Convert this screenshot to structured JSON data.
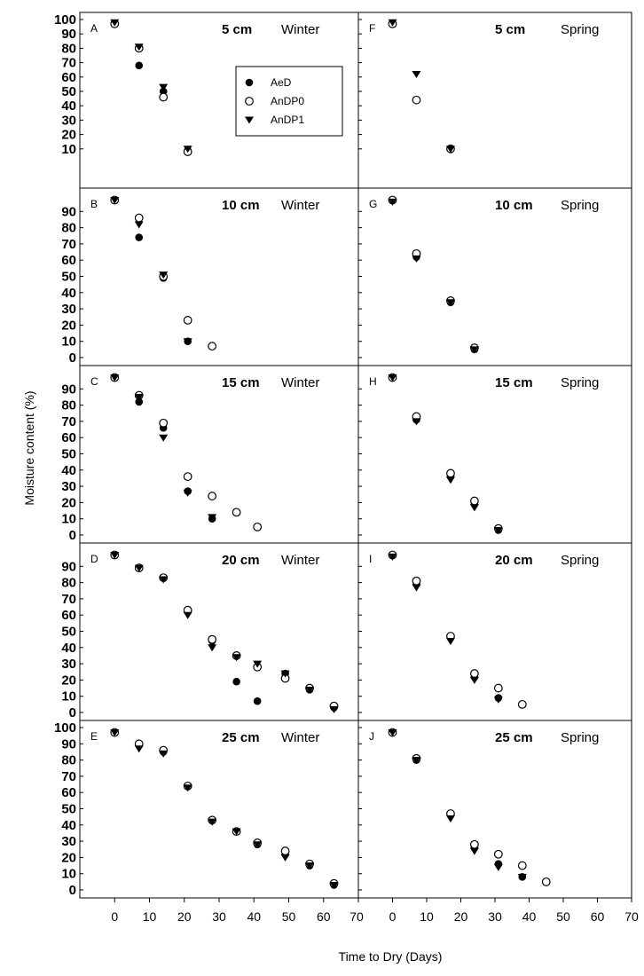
{
  "figure": {
    "ylabel": "Moisture content (%)",
    "xlabel": "Time to Dry (Days)",
    "colors": {
      "marker": "#000000",
      "frame": "#000000"
    }
  },
  "legend": {
    "entries": [
      {
        "name": "AeD",
        "marker": "filled-circle"
      },
      {
        "name": "AnDP0",
        "marker": "open-circle"
      },
      {
        "name": "AnDP1",
        "marker": "filled-triangle-down"
      }
    ]
  },
  "chart_data": [
    {
      "type": "scatter",
      "panel": "A",
      "depth": "5 cm",
      "season": "Winter",
      "xlim": [
        -10,
        70
      ],
      "ylim": [
        0,
        100
      ],
      "xticks": [
        0,
        10,
        20,
        30,
        40,
        50,
        60,
        70
      ],
      "yticks": [
        10,
        20,
        30,
        40,
        50,
        60,
        70,
        80,
        90,
        100
      ],
      "series": [
        {
          "name": "AeD",
          "x": [
            0,
            7,
            14,
            21
          ],
          "y": [
            97,
            68,
            50,
            9
          ]
        },
        {
          "name": "AnDP0",
          "x": [
            0,
            7,
            14,
            21
          ],
          "y": [
            97,
            80,
            46,
            8
          ]
        },
        {
          "name": "AnDP1",
          "x": [
            0,
            7,
            14,
            21
          ],
          "y": [
            98,
            81,
            53,
            10
          ]
        }
      ]
    },
    {
      "type": "scatter",
      "panel": "B",
      "depth": "10 cm",
      "season": "Winter",
      "xlim": [
        -10,
        70
      ],
      "ylim": [
        0,
        100
      ],
      "xticks": [
        0,
        10,
        20,
        30,
        40,
        50,
        60,
        70
      ],
      "yticks": [
        0,
        10,
        20,
        30,
        40,
        50,
        60,
        70,
        80,
        90
      ],
      "series": [
        {
          "name": "AeD",
          "x": [
            0,
            7,
            14,
            21
          ],
          "y": [
            97,
            74,
            49,
            10
          ]
        },
        {
          "name": "AnDP0",
          "x": [
            0,
            7,
            14,
            21,
            28
          ],
          "y": [
            97,
            86,
            50,
            23,
            7
          ]
        },
        {
          "name": "AnDP1",
          "x": [
            0,
            7,
            14,
            21
          ],
          "y": [
            97,
            82,
            51,
            10
          ]
        }
      ]
    },
    {
      "type": "scatter",
      "panel": "C",
      "depth": "15 cm",
      "season": "Winter",
      "xlim": [
        -10,
        70
      ],
      "ylim": [
        0,
        100
      ],
      "xticks": [
        0,
        10,
        20,
        30,
        40,
        50,
        60,
        70
      ],
      "yticks": [
        0,
        10,
        20,
        30,
        40,
        50,
        60,
        70,
        80,
        90
      ],
      "series": [
        {
          "name": "AeD",
          "x": [
            0,
            7,
            14,
            21,
            28
          ],
          "y": [
            97,
            82,
            66,
            27,
            10
          ]
        },
        {
          "name": "AnDP0",
          "x": [
            0,
            7,
            14,
            21,
            28,
            35,
            41
          ],
          "y": [
            97,
            86,
            69,
            36,
            24,
            14,
            5
          ]
        },
        {
          "name": "AnDP1",
          "x": [
            0,
            7,
            14,
            21,
            28
          ],
          "y": [
            97,
            85,
            60,
            26,
            11
          ]
        }
      ]
    },
    {
      "type": "scatter",
      "panel": "D",
      "depth": "20 cm",
      "season": "Winter",
      "xlim": [
        -10,
        70
      ],
      "ylim": [
        0,
        100
      ],
      "xticks": [
        0,
        10,
        20,
        30,
        40,
        50,
        60,
        70
      ],
      "yticks": [
        0,
        10,
        20,
        30,
        40,
        50,
        60,
        70,
        80,
        90
      ],
      "series": [
        {
          "name": "AeD",
          "x": [
            0,
            7,
            14,
            21,
            28,
            35,
            41,
            49,
            56,
            63
          ],
          "y": [
            97,
            89,
            83,
            62,
            44,
            19,
            7,
            24,
            14,
            3
          ]
        },
        {
          "name": "AnDP0",
          "x": [
            0,
            7,
            14,
            21,
            28,
            35,
            41,
            49,
            56,
            63
          ],
          "y": [
            97,
            89,
            83,
            63,
            45,
            35,
            28,
            21,
            15,
            4
          ]
        },
        {
          "name": "AnDP1",
          "x": [
            0,
            7,
            14,
            21,
            28,
            35,
            41,
            49,
            56,
            63
          ],
          "y": [
            97,
            89,
            82,
            60,
            40,
            34,
            30,
            24,
            14,
            2
          ]
        }
      ]
    },
    {
      "type": "scatter",
      "panel": "E",
      "depth": "25 cm",
      "season": "Winter",
      "xlim": [
        -10,
        70
      ],
      "ylim": [
        0,
        100
      ],
      "xticks": [
        0,
        10,
        20,
        30,
        40,
        50,
        60,
        70
      ],
      "yticks": [
        0,
        10,
        20,
        30,
        40,
        50,
        60,
        70,
        80,
        90,
        100
      ],
      "series": [
        {
          "name": "AeD",
          "x": [
            0,
            7,
            14,
            21,
            28,
            35,
            41,
            49,
            56,
            63
          ],
          "y": [
            97,
            89,
            85,
            64,
            43,
            36,
            28,
            22,
            15,
            3
          ]
        },
        {
          "name": "AnDP0",
          "x": [
            0,
            7,
            14,
            21,
            28,
            35,
            41,
            49,
            56,
            63
          ],
          "y": [
            97,
            90,
            86,
            64,
            43,
            36,
            29,
            24,
            16,
            4
          ]
        },
        {
          "name": "AnDP1",
          "x": [
            0,
            7,
            14,
            21,
            28,
            35,
            41,
            49,
            56,
            63
          ],
          "y": [
            97,
            87,
            84,
            63,
            42,
            36,
            28,
            20,
            15,
            3
          ]
        }
      ]
    },
    {
      "type": "scatter",
      "panel": "F",
      "depth": "5 cm",
      "season": "Spring",
      "xlim": [
        -10,
        70
      ],
      "ylim": [
        0,
        100
      ],
      "xticks": [
        0,
        10,
        20,
        30,
        40,
        50,
        60,
        70
      ],
      "yticks": [
        10,
        20,
        30,
        40,
        50,
        60,
        70,
        80,
        90,
        100
      ],
      "series": [
        {
          "name": "AeD",
          "x": [
            0,
            17
          ],
          "y": [
            97,
            10
          ]
        },
        {
          "name": "AnDP0",
          "x": [
            0,
            7,
            17
          ],
          "y": [
            97,
            44,
            10
          ]
        },
        {
          "name": "AnDP1",
          "x": [
            0,
            7,
            17
          ],
          "y": [
            98,
            62,
            10
          ]
        }
      ]
    },
    {
      "type": "scatter",
      "panel": "G",
      "depth": "10 cm",
      "season": "Spring",
      "xlim": [
        -10,
        70
      ],
      "ylim": [
        0,
        100
      ],
      "xticks": [
        0,
        10,
        20,
        30,
        40,
        50,
        60,
        70
      ],
      "yticks": [
        0,
        10,
        20,
        30,
        40,
        50,
        60,
        70,
        80,
        90
      ],
      "series": [
        {
          "name": "AeD",
          "x": [
            0,
            7,
            17,
            24
          ],
          "y": [
            97,
            62,
            34,
            5
          ]
        },
        {
          "name": "AnDP0",
          "x": [
            0,
            7,
            17,
            24
          ],
          "y": [
            97,
            64,
            35,
            6
          ]
        },
        {
          "name": "AnDP1",
          "x": [
            0,
            7,
            17,
            24
          ],
          "y": [
            96,
            61,
            34,
            5
          ]
        }
      ]
    },
    {
      "type": "scatter",
      "panel": "H",
      "depth": "15 cm",
      "season": "Spring",
      "xlim": [
        -10,
        70
      ],
      "ylim": [
        0,
        100
      ],
      "xticks": [
        0,
        10,
        20,
        30,
        40,
        50,
        60,
        70
      ],
      "yticks": [
        0,
        10,
        20,
        30,
        40,
        50,
        60,
        70,
        80,
        90
      ],
      "series": [
        {
          "name": "AeD",
          "x": [
            0,
            7,
            17,
            24,
            31
          ],
          "y": [
            97,
            71,
            36,
            19,
            3
          ]
        },
        {
          "name": "AnDP0",
          "x": [
            0,
            7,
            17,
            24,
            31
          ],
          "y": [
            97,
            73,
            38,
            21,
            4
          ]
        },
        {
          "name": "AnDP1",
          "x": [
            0,
            7,
            17,
            24,
            31
          ],
          "y": [
            97,
            70,
            34,
            17,
            3
          ]
        }
      ]
    },
    {
      "type": "scatter",
      "panel": "I",
      "depth": "20 cm",
      "season": "Spring",
      "xlim": [
        -10,
        70
      ],
      "ylim": [
        0,
        100
      ],
      "xticks": [
        0,
        10,
        20,
        30,
        40,
        50,
        60,
        70
      ],
      "yticks": [
        0,
        10,
        20,
        30,
        40,
        50,
        60,
        70,
        80,
        90
      ],
      "series": [
        {
          "name": "AeD",
          "x": [
            0,
            7,
            17,
            24,
            31
          ],
          "y": [
            97,
            79,
            46,
            22,
            9
          ]
        },
        {
          "name": "AnDP0",
          "x": [
            0,
            7,
            17,
            24,
            31,
            38
          ],
          "y": [
            97,
            81,
            47,
            24,
            15,
            5
          ]
        },
        {
          "name": "AnDP1",
          "x": [
            0,
            7,
            17,
            24,
            31
          ],
          "y": [
            96,
            77,
            44,
            20,
            8
          ]
        }
      ]
    },
    {
      "type": "scatter",
      "panel": "J",
      "depth": "25 cm",
      "season": "Spring",
      "xlim": [
        -10,
        70
      ],
      "ylim": [
        0,
        100
      ],
      "xticks": [
        0,
        10,
        20,
        30,
        40,
        50,
        60,
        70
      ],
      "yticks": [
        0,
        10,
        20,
        30,
        40,
        50,
        60,
        70,
        80,
        90,
        100
      ],
      "series": [
        {
          "name": "AeD",
          "x": [
            0,
            7,
            17,
            24,
            31,
            38
          ],
          "y": [
            97,
            80,
            46,
            26,
            16,
            8
          ]
        },
        {
          "name": "AnDP0",
          "x": [
            0,
            7,
            17,
            24,
            31,
            38,
            45
          ],
          "y": [
            97,
            81,
            47,
            28,
            22,
            15,
            5
          ]
        },
        {
          "name": "AnDP1",
          "x": [
            0,
            7,
            17,
            24,
            31,
            38
          ],
          "y": [
            97,
            80,
            44,
            24,
            14,
            8
          ]
        }
      ]
    }
  ]
}
